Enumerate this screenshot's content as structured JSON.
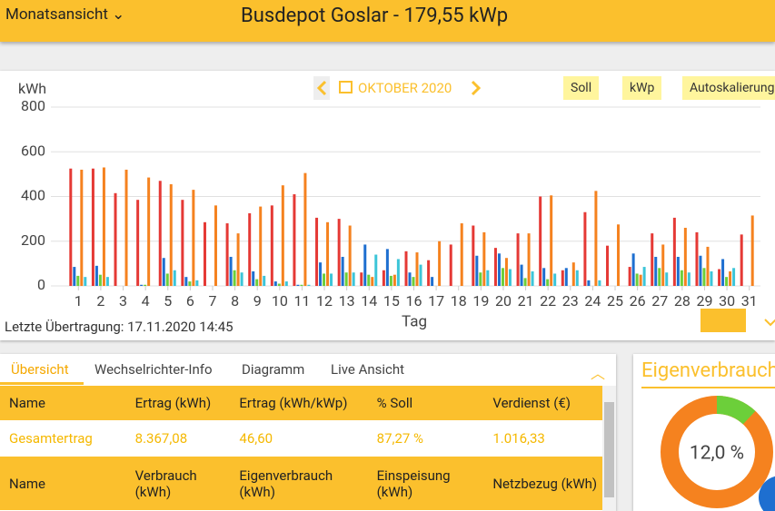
{
  "header": {
    "menu": "Monatsansicht",
    "title": "Busdepot Goslar - 179,55 kWp"
  },
  "chart_data": {
    "type": "bar",
    "period": "OKTOBER 2020",
    "y_label": "kWh",
    "x_label": "Tag",
    "categories": [
      "1",
      "2",
      "3",
      "4",
      "5",
      "6",
      "7",
      "8",
      "9",
      "10",
      "11",
      "12",
      "13",
      "14",
      "15",
      "16",
      "17",
      "18",
      "19",
      "20",
      "21",
      "22",
      "23",
      "24",
      "25",
      "26",
      "27",
      "28",
      "29",
      "30",
      "31"
    ],
    "series": [
      {
        "color": "#e53935",
        "values": [
          525,
          525,
          415,
          385,
          470,
          385,
          285,
          280,
          325,
          360,
          410,
          305,
          300,
          60,
          70,
          155,
          115,
          185,
          270,
          170,
          235,
          400,
          70,
          330,
          180,
          85,
          235,
          305,
          240,
          75,
          230
        ]
      },
      {
        "color": "#1e6fd0",
        "values": [
          85,
          90,
          0,
          5,
          125,
          40,
          0,
          130,
          65,
          20,
          5,
          105,
          130,
          185,
          165,
          60,
          40,
          0,
          135,
          145,
          95,
          80,
          80,
          25,
          0,
          145,
          130,
          130,
          135,
          120,
          0
        ]
      },
      {
        "color": "#6ccf3a",
        "values": [
          45,
          50,
          0,
          5,
          55,
          20,
          0,
          70,
          30,
          10,
          5,
          55,
          60,
          50,
          45,
          40,
          0,
          0,
          60,
          80,
          35,
          30,
          0,
          0,
          0,
          55,
          80,
          70,
          80,
          40,
          0
        ]
      },
      {
        "color": "#f5821f",
        "values": [
          520,
          530,
          520,
          485,
          455,
          430,
          360,
          235,
          355,
          450,
          505,
          285,
          270,
          40,
          50,
          150,
          200,
          280,
          240,
          125,
          235,
          405,
          105,
          425,
          275,
          50,
          185,
          260,
          175,
          65,
          315
        ]
      },
      {
        "color": "#3cc5d8",
        "values": [
          40,
          40,
          0,
          0,
          70,
          25,
          0,
          60,
          45,
          20,
          5,
          55,
          60,
          140,
          120,
          95,
          0,
          0,
          70,
          75,
          65,
          55,
          70,
          25,
          0,
          85,
          60,
          60,
          65,
          80,
          0
        ]
      }
    ],
    "ylim": [
      0,
      800
    ],
    "yticks": [
      0,
      200,
      400,
      600,
      800
    ],
    "grid": true
  },
  "buttons": [
    "Soll",
    "kWp",
    "Autoskalierung"
  ],
  "last_transfer": "Letzte Übertragung: 17.11.2020 14:45",
  "tabs": [
    "Übersicht",
    "Wechselrichter-Info",
    "Diagramm",
    "Live Ansicht"
  ],
  "table": {
    "rows": [
      [
        "Name",
        "Ertrag (kWh)",
        "Ertrag (kWh/kWp)",
        "% Soll",
        "Verdienst (€)"
      ],
      [
        "Gesamtertrag",
        "8.367,08",
        "46,60",
        "87,27 %",
        "1.016,33"
      ],
      [
        "Name",
        "Verbrauch (kWh)",
        "Eigenverbrauch (kWh)",
        "Einspeisung (kWh)",
        "Netzbezug (kWh)"
      ]
    ]
  },
  "donut": {
    "title": "Eigenverbrauch",
    "value": 12.0,
    "label": "12,0 %"
  }
}
